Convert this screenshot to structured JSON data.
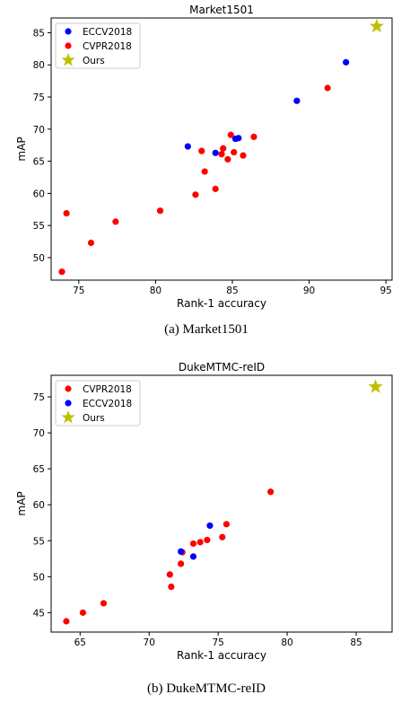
{
  "chart_data": [
    {
      "type": "scatter",
      "title": "Market1501",
      "xlabel": "Rank-1 accuracy",
      "ylabel": "mAP",
      "xlim": [
        73.2,
        95.4
      ],
      "ylim": [
        46.5,
        87.3
      ],
      "xticks": [
        75,
        80,
        85,
        90,
        95
      ],
      "yticks": [
        50,
        55,
        60,
        65,
        70,
        75,
        80,
        85
      ],
      "legend_position": "top-left",
      "grid": false,
      "series": [
        {
          "name": "ECCV2018",
          "marker": "circle",
          "color": "#0000ff",
          "points": [
            {
              "x": 82.1,
              "y": 67.3
            },
            {
              "x": 83.9,
              "y": 66.3
            },
            {
              "x": 85.2,
              "y": 68.5
            },
            {
              "x": 85.4,
              "y": 68.6
            },
            {
              "x": 89.2,
              "y": 74.4
            },
            {
              "x": 92.4,
              "y": 80.4
            }
          ]
        },
        {
          "name": "CVPR2018",
          "marker": "circle",
          "color": "#ff0000",
          "points": [
            {
              "x": 73.9,
              "y": 47.8
            },
            {
              "x": 74.2,
              "y": 56.9
            },
            {
              "x": 75.8,
              "y": 52.3
            },
            {
              "x": 77.4,
              "y": 55.6
            },
            {
              "x": 80.3,
              "y": 57.3
            },
            {
              "x": 82.6,
              "y": 59.8
            },
            {
              "x": 83.0,
              "y": 66.6
            },
            {
              "x": 83.2,
              "y": 63.4
            },
            {
              "x": 83.9,
              "y": 60.7
            },
            {
              "x": 84.3,
              "y": 66.1
            },
            {
              "x": 84.4,
              "y": 67.0
            },
            {
              "x": 84.7,
              "y": 65.3
            },
            {
              "x": 84.9,
              "y": 69.1
            },
            {
              "x": 85.1,
              "y": 66.4
            },
            {
              "x": 85.7,
              "y": 65.9
            },
            {
              "x": 86.4,
              "y": 68.8
            },
            {
              "x": 91.2,
              "y": 76.4
            }
          ]
        },
        {
          "name": "Ours",
          "marker": "star",
          "color": "#bfbf00",
          "points": [
            {
              "x": 94.4,
              "y": 86.0
            }
          ]
        }
      ]
    },
    {
      "type": "scatter",
      "title": "DukeMTMC-reID",
      "xlabel": "Rank-1 accuracy",
      "ylabel": "mAP",
      "xlim": [
        62.9,
        87.6
      ],
      "ylim": [
        42.3,
        78.0
      ],
      "xticks": [
        65,
        70,
        75,
        80,
        85
      ],
      "yticks": [
        45,
        50,
        55,
        60,
        65,
        70,
        75
      ],
      "legend_position": "top-left",
      "grid": false,
      "series": [
        {
          "name": "CVPR2018",
          "marker": "circle",
          "color": "#ff0000",
          "points": [
            {
              "x": 64.0,
              "y": 43.8
            },
            {
              "x": 65.2,
              "y": 45.0
            },
            {
              "x": 66.7,
              "y": 46.3
            },
            {
              "x": 71.5,
              "y": 50.3
            },
            {
              "x": 71.6,
              "y": 48.6
            },
            {
              "x": 72.3,
              "y": 51.8
            },
            {
              "x": 72.4,
              "y": 53.4
            },
            {
              "x": 73.2,
              "y": 54.6
            },
            {
              "x": 73.7,
              "y": 54.8
            },
            {
              "x": 74.2,
              "y": 55.1
            },
            {
              "x": 75.3,
              "y": 55.5
            },
            {
              "x": 75.6,
              "y": 57.3
            },
            {
              "x": 78.8,
              "y": 61.8
            }
          ]
        },
        {
          "name": "ECCV2018",
          "marker": "circle",
          "color": "#0000ff",
          "points": [
            {
              "x": 72.3,
              "y": 53.5
            },
            {
              "x": 73.2,
              "y": 52.8
            },
            {
              "x": 74.4,
              "y": 57.1
            }
          ]
        },
        {
          "name": "Ours",
          "marker": "star",
          "color": "#bfbf00",
          "points": [
            {
              "x": 86.4,
              "y": 76.4
            }
          ]
        }
      ]
    }
  ],
  "captions": [
    "(a)  Market1501",
    "(b)  DukeMTMC-reID"
  ]
}
